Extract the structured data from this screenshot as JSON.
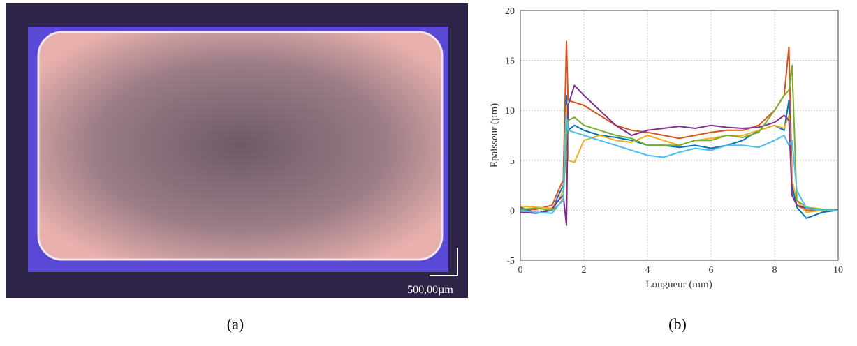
{
  "image": {
    "scale_bar": "500,00µm",
    "caption": "(a)"
  },
  "chart_data": {
    "type": "line",
    "caption": "(b)",
    "x_label": "Longueur (mm)",
    "y_label": "Epaisseur (µm)",
    "x": [
      0,
      0.5,
      1,
      1.2,
      1.35,
      1.45,
      1.5,
      1.7,
      2,
      2.5,
      3,
      3.5,
      4,
      4.5,
      5,
      5.5,
      6,
      6.5,
      7,
      7.5,
      8,
      8.3,
      8.45,
      8.55,
      8.7,
      9,
      9.5,
      10
    ],
    "series": [
      {
        "color": "#d95319",
        "values": [
          0,
          0.1,
          0.5,
          2,
          3,
          16.9,
          11,
          10.8,
          10.5,
          9.5,
          8.5,
          8,
          7.8,
          7.5,
          7.2,
          7.5,
          7.8,
          8,
          8,
          8.5,
          10,
          11.5,
          16.3,
          3,
          0.5,
          0,
          0,
          0
        ]
      },
      {
        "color": "#0072bd",
        "values": [
          0.3,
          -0.3,
          0,
          1.5,
          2.5,
          11.5,
          8,
          8.5,
          8,
          7.5,
          7.3,
          7,
          6.5,
          6.5,
          6.3,
          6.5,
          6.2,
          6.5,
          7,
          8,
          8.5,
          8,
          11,
          2.5,
          0.3,
          -0.8,
          -0.2,
          0
        ]
      },
      {
        "color": "#edb120",
        "values": [
          0.4,
          0.3,
          0.2,
          1,
          2,
          10.5,
          5,
          4.8,
          7,
          7.5,
          7,
          6.8,
          7.5,
          7,
          6.5,
          7,
          7.2,
          7.5,
          7.5,
          8,
          8.5,
          8.2,
          9.5,
          3,
          1,
          -0.2,
          0,
          0
        ]
      },
      {
        "color": "#7e2f8e",
        "values": [
          -0.2,
          -0.3,
          0.1,
          1,
          1.5,
          -1.5,
          10.5,
          12.5,
          11.5,
          10,
          8.5,
          7.5,
          8,
          8.2,
          8.4,
          8.2,
          8.5,
          8.3,
          8.2,
          8.3,
          8.8,
          9.5,
          9,
          1.5,
          0.5,
          0.2,
          0.1,
          0.1
        ]
      },
      {
        "color": "#77ac30",
        "values": [
          0.1,
          0.2,
          0,
          0.5,
          1.2,
          7,
          9,
          9.3,
          8.5,
          8,
          7.5,
          7.2,
          6.5,
          6.5,
          6.5,
          7,
          7,
          7.5,
          7.3,
          7.8,
          10,
          11.5,
          12,
          14.5,
          1,
          0.3,
          0.1,
          0
        ]
      },
      {
        "color": "#4dbeee",
        "values": [
          0,
          -0.2,
          -0.3,
          0.5,
          1,
          9.5,
          8,
          7.8,
          7.5,
          7,
          6.5,
          6,
          5.5,
          5.3,
          5.8,
          6.2,
          6,
          6.5,
          6.5,
          6.3,
          7,
          7.5,
          6.5,
          7,
          2,
          0.2,
          0,
          0
        ]
      }
    ],
    "xlim": [
      0,
      10
    ],
    "ylim": [
      -5,
      20
    ],
    "xticks": [
      0,
      2,
      4,
      6,
      8,
      10
    ],
    "yticks": [
      -5,
      0,
      5,
      10,
      15,
      20
    ],
    "grid": true
  }
}
